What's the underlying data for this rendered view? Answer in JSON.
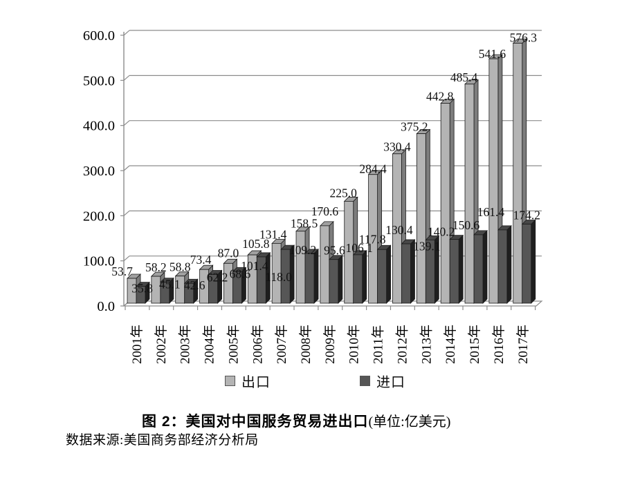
{
  "figure": {
    "caption_bold": "图 2：美国对中国服务贸易进出口",
    "caption_unit": "(单位:亿美元)",
    "source": "数据来源:美国商务部经济分析局"
  },
  "chart_data": {
    "type": "bar",
    "style": "3d-clustered-column",
    "title": "图 2：美国对中国服务贸易进出口",
    "unit_label": "单位:亿美元",
    "categories": [
      "2001年",
      "2002年",
      "2003年",
      "2004年",
      "2005年",
      "2006年",
      "2007年",
      "2008年",
      "2009年",
      "2010年",
      "2011年",
      "2012年",
      "2013年",
      "2014年",
      "2015年",
      "2016年",
      "2017年"
    ],
    "series": [
      {
        "name": "出口",
        "color": "#b4b4b4",
        "side_color": "#7d7d7d",
        "top_color": "#a0a0a0",
        "values": [
          53.7,
          58.2,
          58.8,
          73.4,
          87.0,
          105.8,
          131.4,
          158.5,
          170.6,
          225.0,
          284.4,
          330.4,
          375.2,
          442.8,
          485.4,
          541.6,
          576.3
        ]
      },
      {
        "name": "进口",
        "color": "#565656",
        "side_color": "#1f1f1f",
        "top_color": "#474747",
        "values": [
          35.8,
          45.1,
          42.6,
          62.2,
          68.6,
          101.4,
          118.0,
          109.2,
          95.6,
          106.1,
          117.8,
          130.4,
          139.1,
          140.2,
          150.6,
          161.4,
          174.2
        ]
      }
    ],
    "ylim": [
      0,
      600
    ],
    "ytick_step": 100,
    "ytick_labels": [
      "0.0",
      "100.0",
      "200.0",
      "300.0",
      "400.0",
      "500.0",
      "600.0"
    ],
    "grid": true,
    "value_labels": true,
    "value_label_decimals": 1,
    "legend_position": "bottom",
    "axis_color": "#8c8c8c",
    "label_color": "#111111"
  }
}
